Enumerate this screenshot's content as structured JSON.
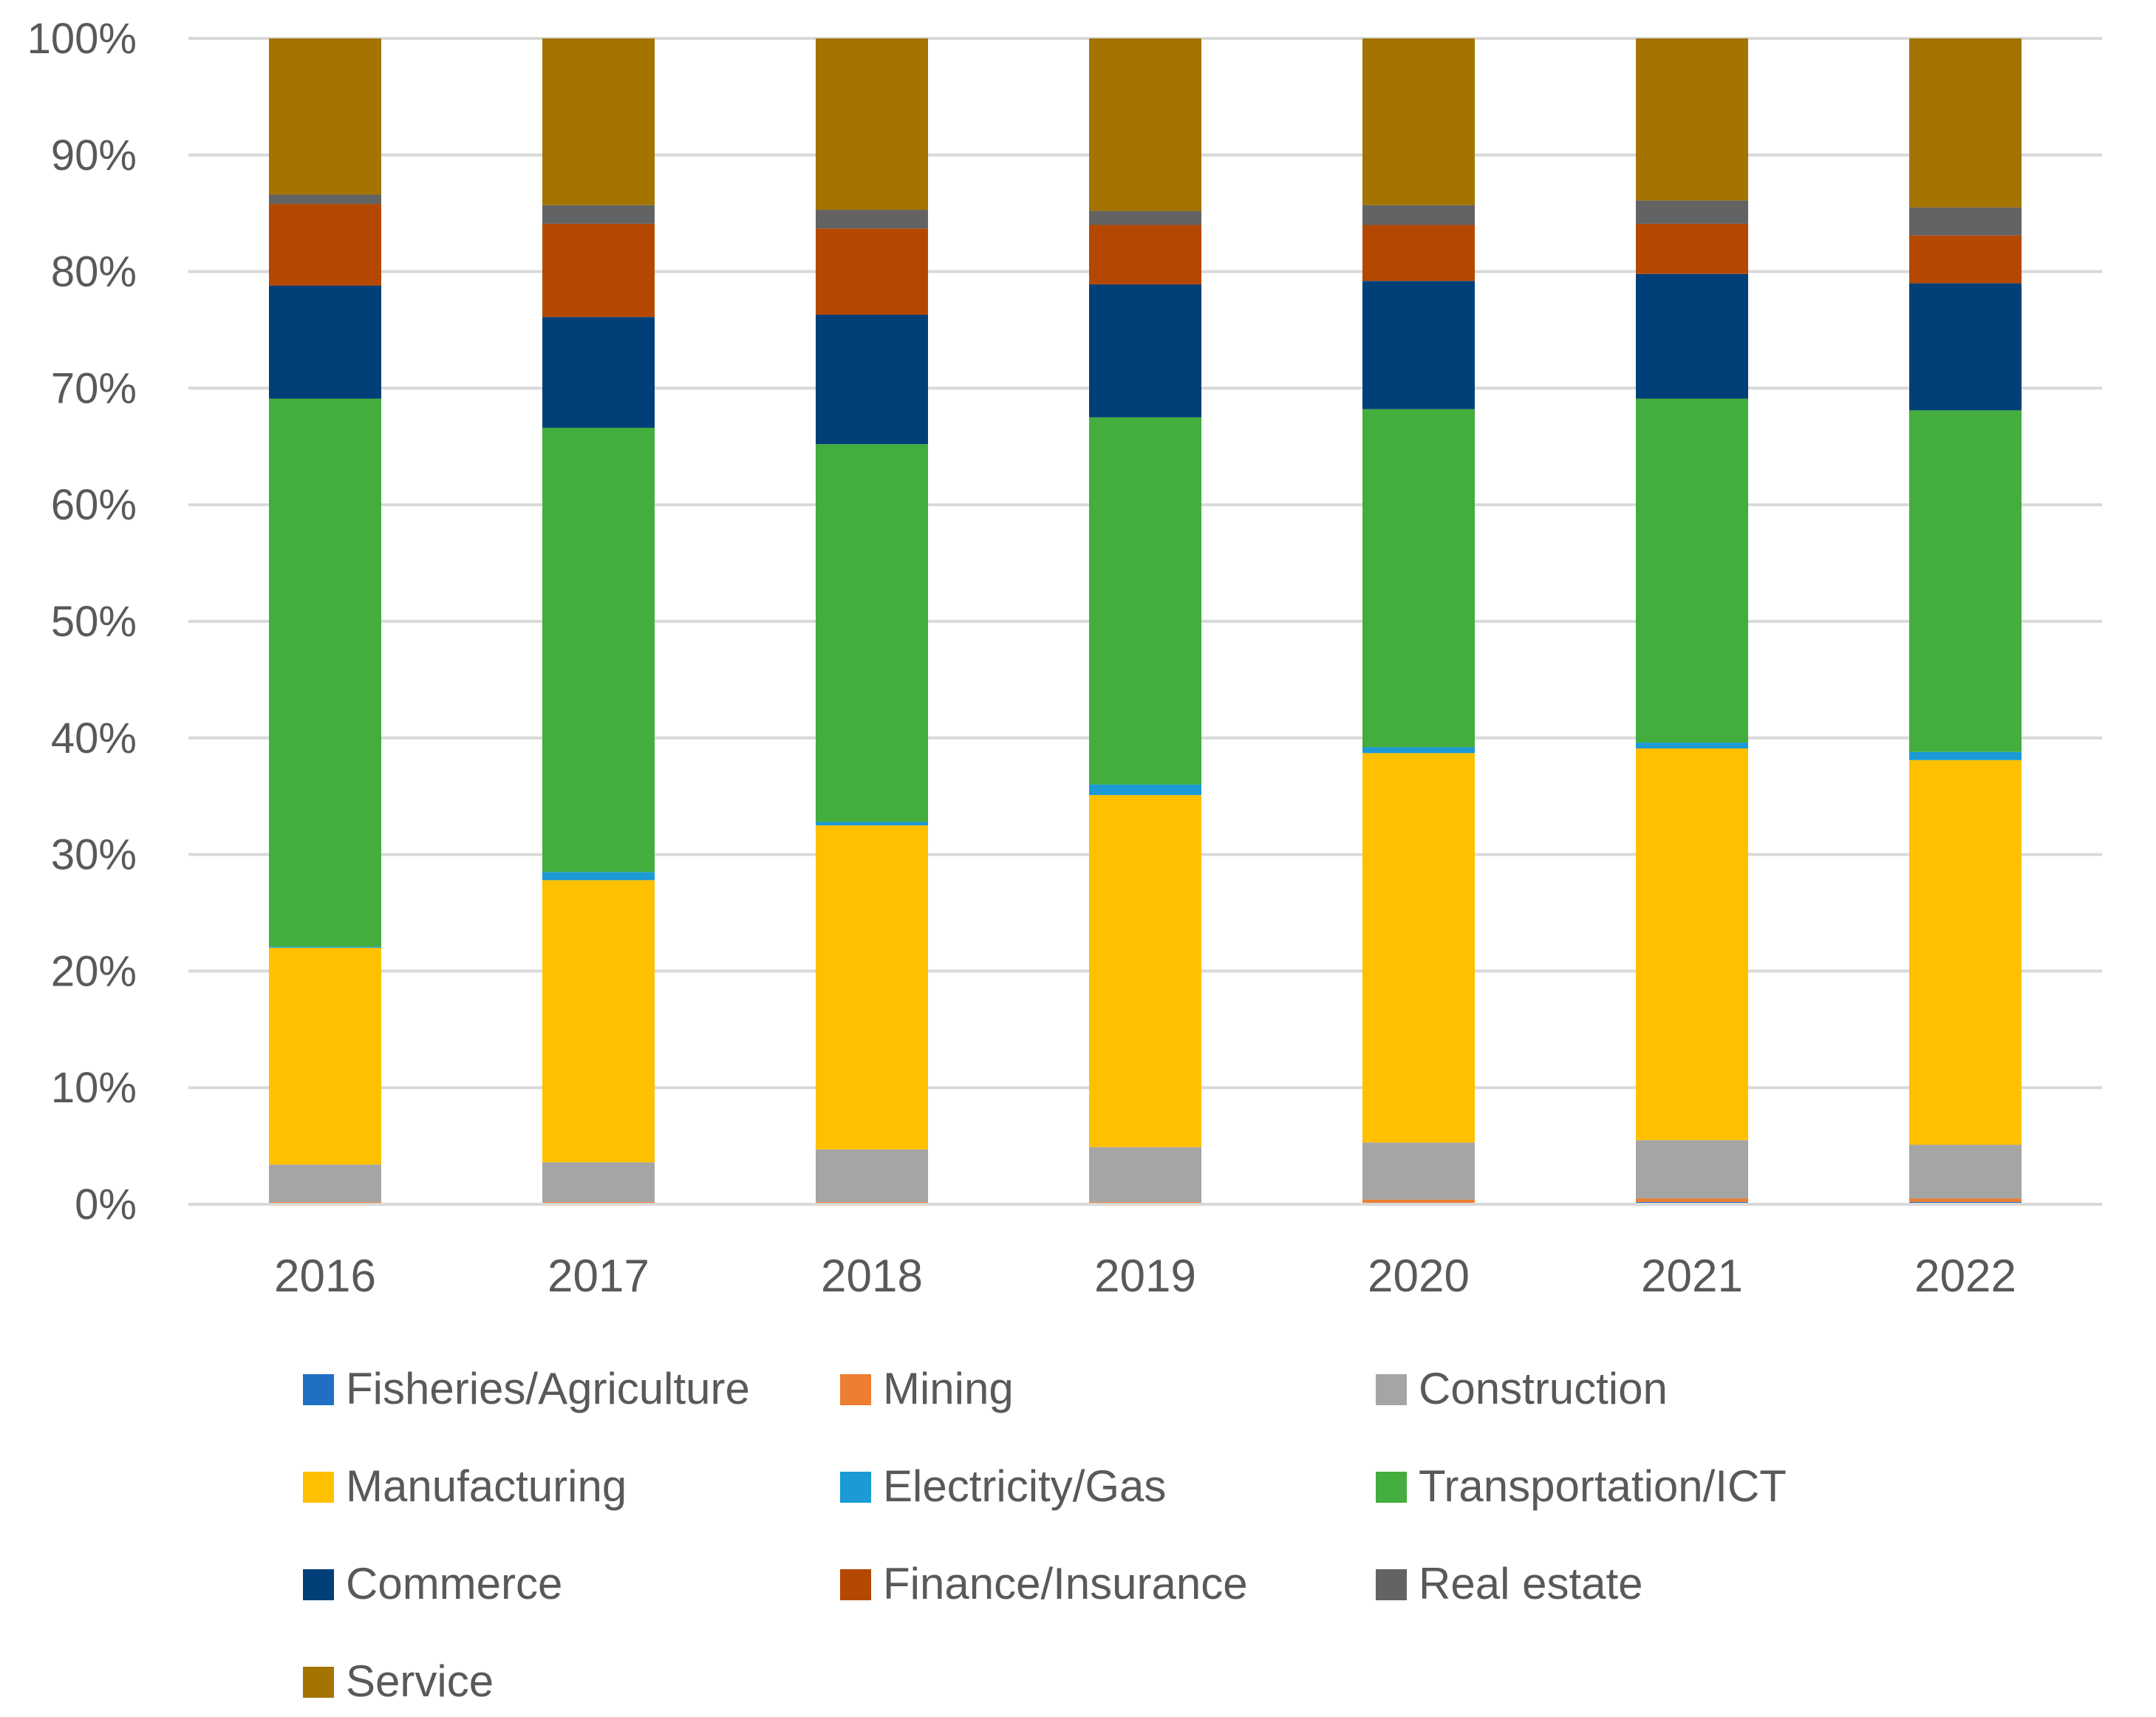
{
  "chart_data": {
    "type": "bar",
    "stacked": true,
    "percent": true,
    "title": "",
    "xlabel": "",
    "ylabel": "",
    "ylim": [
      0,
      100
    ],
    "y_ticks": [
      "0%",
      "10%",
      "20%",
      "30%",
      "40%",
      "50%",
      "60%",
      "70%",
      "80%",
      "90%",
      "100%"
    ],
    "grid": true,
    "legend_position": "bottom",
    "categories": [
      "2016",
      "2017",
      "2018",
      "2019",
      "2020",
      "2021",
      "2022"
    ],
    "series": [
      {
        "name": "Fisheries/Agriculture",
        "color": "#1f6fc5",
        "values": [
          0.1,
          0.1,
          0.1,
          0.1,
          0.1,
          0.2,
          0.2
        ]
      },
      {
        "name": "Mining",
        "color": "#ed7d31",
        "values": [
          0.1,
          0.1,
          0.1,
          0.1,
          0.3,
          0.3,
          0.3
        ]
      },
      {
        "name": "Construction",
        "color": "#a5a5a5",
        "values": [
          3.2,
          3.4,
          4.5,
          4.7,
          4.9,
          5.0,
          4.6
        ]
      },
      {
        "name": "Manufacturing",
        "color": "#ffc000",
        "values": [
          18.6,
          24.2,
          27.8,
          30.2,
          33.4,
          33.6,
          33.0
        ]
      },
      {
        "name": "Electricity/Gas",
        "color": "#1b9ad6",
        "values": [
          0.1,
          0.7,
          0.3,
          0.9,
          0.5,
          0.5,
          0.7
        ]
      },
      {
        "name": "Transportation/ICT",
        "color": "#43ad3d",
        "values": [
          47.0,
          38.1,
          32.4,
          31.5,
          29.0,
          29.5,
          29.3
        ]
      },
      {
        "name": "Commerce",
        "color": "#003f78",
        "values": [
          9.7,
          9.5,
          11.1,
          11.4,
          11.0,
          10.7,
          10.9
        ]
      },
      {
        "name": "Finance/Insurance",
        "color": "#b54800",
        "values": [
          7.0,
          8.0,
          7.4,
          5.1,
          4.8,
          4.3,
          4.1
        ]
      },
      {
        "name": "Real estate",
        "color": "#636363",
        "values": [
          0.8,
          1.6,
          1.6,
          1.2,
          1.7,
          2.0,
          2.4
        ]
      },
      {
        "name": "Service",
        "color": "#a37400",
        "values": [
          13.4,
          14.3,
          14.7,
          14.8,
          14.3,
          13.9,
          14.5
        ]
      }
    ]
  }
}
